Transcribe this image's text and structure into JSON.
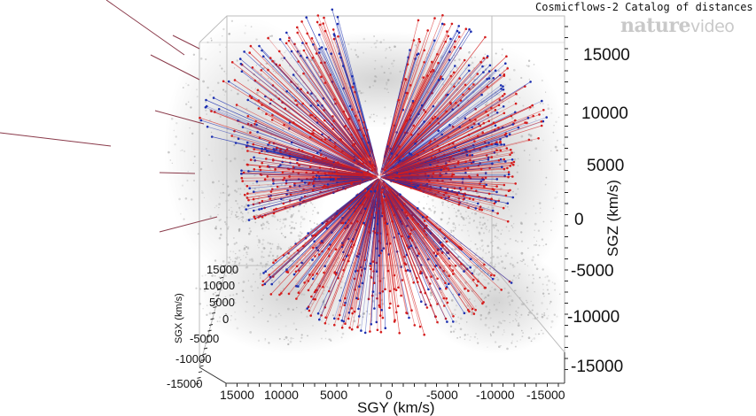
{
  "caption": "Cosmicflows-2 Catalog of distances",
  "logo": {
    "brand": "nature",
    "product": "video"
  },
  "colors": {
    "red": "#d41c1c",
    "blue": "#1c2fb0",
    "grey": "#9b9b9b",
    "box": "#bdbdbd"
  },
  "axes": {
    "sgz": {
      "label": "SGZ (km/s)",
      "ticks": [
        "15000",
        "10000",
        "5000",
        "0",
        "-5000",
        "-10000",
        "-15000"
      ]
    },
    "sgy": {
      "label": "SGY (km/s)",
      "ticks": [
        "15000",
        "10000",
        "5000",
        "0",
        "-5000",
        "-10000",
        "-15000"
      ]
    },
    "sgx": {
      "label": "SGX (km/s)",
      "ticks": [
        "15000",
        "10000",
        "5000",
        "0",
        "-5000",
        "-10000",
        "-15000"
      ]
    }
  }
}
